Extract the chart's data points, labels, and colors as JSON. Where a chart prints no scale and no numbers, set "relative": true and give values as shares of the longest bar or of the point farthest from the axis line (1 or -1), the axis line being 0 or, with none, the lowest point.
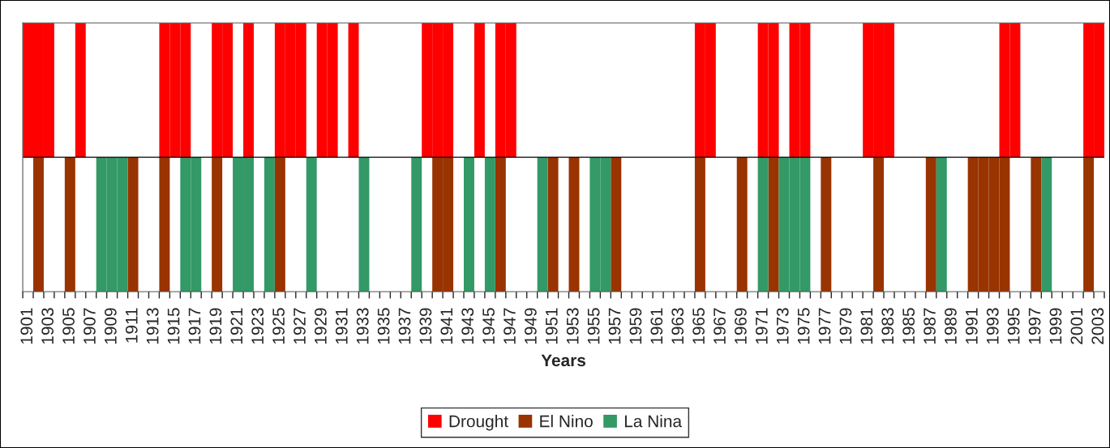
{
  "chart_data": {
    "type": "bar",
    "relative": true,
    "xlabel": "Years",
    "legend": "bottom",
    "categories": [
      "1901",
      null,
      "1903",
      null,
      "1905",
      null,
      "1907",
      null,
      "1909",
      null,
      "1911",
      null,
      "1913",
      null,
      "1915",
      null,
      "1917",
      null,
      "1919",
      null,
      "1921",
      null,
      "1923",
      null,
      "1925",
      null,
      "1927",
      null,
      "1929",
      null,
      "1931",
      null,
      "1933",
      null,
      "1935",
      null,
      "1937",
      null,
      "1939",
      null,
      "1941",
      null,
      "1943",
      null,
      "1945",
      null,
      "1947",
      null,
      "1949",
      null,
      "1951",
      null,
      "1953",
      null,
      "1955",
      null,
      "1957",
      null,
      "1959",
      null,
      "1961",
      null,
      "1963",
      null,
      "1965",
      null,
      "1967",
      null,
      "1969",
      null,
      "1971",
      null,
      "1973",
      null,
      "1975",
      null,
      "1977",
      null,
      "1979",
      null,
      "1981",
      null,
      "1983",
      null,
      "1985",
      null,
      "1987",
      null,
      "1989",
      null,
      "1991",
      null,
      "1993",
      null,
      "1995",
      null,
      "1997",
      null,
      "1999",
      null,
      "2001",
      null,
      "2003"
    ],
    "series": [
      {
        "name": "Drought",
        "color": "#ff0000",
        "values": [
          1,
          1,
          1,
          null,
          null,
          1,
          null,
          null,
          null,
          null,
          null,
          null,
          null,
          1,
          1,
          1,
          null,
          null,
          1,
          1,
          null,
          1,
          null,
          null,
          1,
          1,
          1,
          null,
          1,
          1,
          null,
          1,
          null,
          null,
          null,
          null,
          null,
          null,
          1,
          1,
          1,
          null,
          null,
          1,
          null,
          1,
          1,
          null,
          null,
          null,
          null,
          null,
          null,
          null,
          null,
          null,
          null,
          null,
          null,
          null,
          null,
          null,
          null,
          null,
          1,
          1,
          null,
          null,
          null,
          null,
          1,
          1,
          null,
          1,
          1,
          null,
          null,
          null,
          null,
          null,
          1,
          1,
          1,
          null,
          null,
          null,
          null,
          null,
          null,
          null,
          null,
          null,
          null,
          1,
          1,
          null,
          null,
          null,
          null,
          null,
          null,
          1,
          1
        ]
      },
      {
        "name": "El Nino",
        "color": "#993300",
        "values": [
          null,
          -1,
          null,
          null,
          -1,
          null,
          null,
          null,
          null,
          null,
          -1,
          null,
          null,
          -1,
          null,
          null,
          null,
          null,
          -1,
          null,
          null,
          null,
          null,
          null,
          -1,
          null,
          null,
          null,
          null,
          null,
          null,
          null,
          null,
          null,
          null,
          null,
          null,
          null,
          null,
          -1,
          -1,
          null,
          null,
          null,
          null,
          -1,
          null,
          null,
          null,
          null,
          -1,
          null,
          -1,
          null,
          null,
          null,
          -1,
          null,
          null,
          null,
          null,
          null,
          null,
          null,
          -1,
          null,
          null,
          null,
          -1,
          null,
          null,
          -1,
          null,
          null,
          null,
          null,
          -1,
          null,
          null,
          null,
          null,
          -1,
          null,
          null,
          null,
          null,
          -1,
          null,
          null,
          null,
          -1,
          -1,
          -1,
          -1,
          null,
          null,
          -1,
          null,
          null,
          null,
          null,
          -1,
          null
        ]
      },
      {
        "name": "La Nina",
        "color": "#339966",
        "values": [
          null,
          null,
          null,
          null,
          null,
          null,
          null,
          -1,
          -1,
          -1,
          null,
          null,
          null,
          null,
          null,
          -1,
          -1,
          null,
          null,
          null,
          -1,
          -1,
          null,
          -1,
          null,
          null,
          null,
          -1,
          null,
          null,
          null,
          null,
          -1,
          null,
          null,
          null,
          null,
          -1,
          null,
          null,
          null,
          null,
          -1,
          null,
          -1,
          null,
          null,
          null,
          null,
          -1,
          null,
          null,
          null,
          null,
          -1,
          -1,
          null,
          null,
          null,
          null,
          null,
          null,
          null,
          null,
          null,
          null,
          null,
          null,
          null,
          null,
          -1,
          null,
          -1,
          -1,
          -1,
          null,
          null,
          null,
          null,
          null,
          null,
          null,
          null,
          null,
          null,
          null,
          null,
          -1,
          null,
          null,
          null,
          null,
          null,
          null,
          null,
          null,
          null,
          -1,
          null,
          null,
          null,
          null,
          null
        ]
      }
    ]
  }
}
